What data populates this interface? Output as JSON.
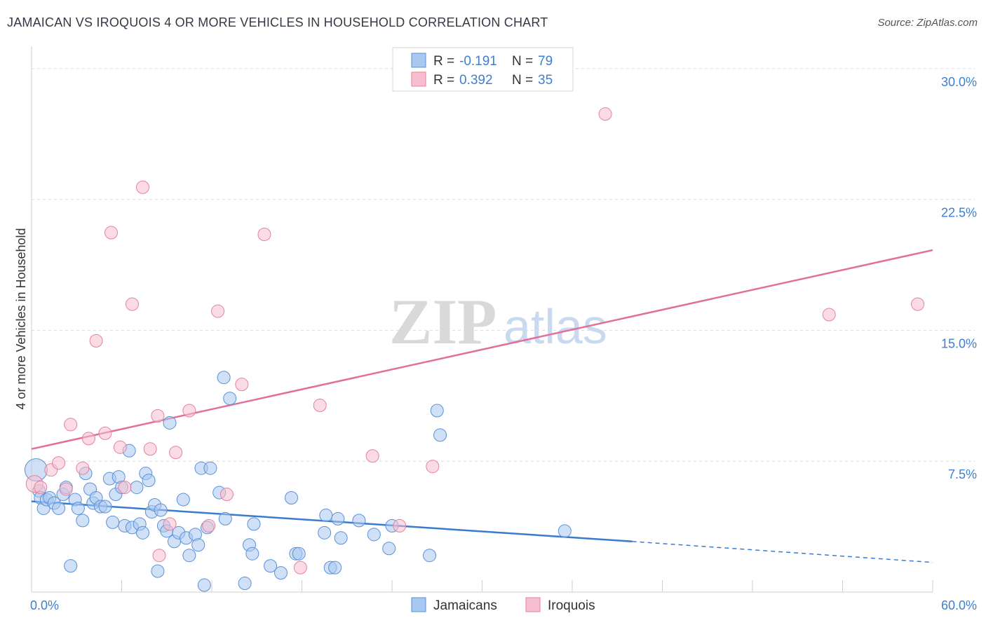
{
  "header": {
    "title": "JAMAICAN VS IROQUOIS 4 OR MORE VEHICLES IN HOUSEHOLD CORRELATION CHART",
    "source": "Source: ZipAtlas.com"
  },
  "watermark": {
    "zip": "ZIP",
    "atlas": "atlas"
  },
  "legend_box": {
    "rows": [
      {
        "r_label": "R =",
        "r_value": "-0.191",
        "n_label": "N =",
        "n_value": "79",
        "color": "#a9c8f0",
        "stroke": "#5a90d8"
      },
      {
        "r_label": "R =",
        "r_value": "0.392",
        "n_label": "N =",
        "n_value": "35",
        "color": "#f7bfd0",
        "stroke": "#e77fa0"
      }
    ]
  },
  "bottom_legend": [
    {
      "label": "Jamaicans",
      "color": "#a9c8f0",
      "stroke": "#5a90d8"
    },
    {
      "label": "Iroquois",
      "color": "#f7bfd0",
      "stroke": "#e77fa0"
    }
  ],
  "chart_data": {
    "type": "scatter",
    "title": "JAMAICAN VS IROQUOIS 4 OR MORE VEHICLES IN HOUSEHOLD CORRELATION CHART",
    "xlabel": "",
    "ylabel": "4 or more Vehicles in Household",
    "xlim": [
      0,
      60
    ],
    "ylim": [
      0,
      30.8
    ],
    "x_tick_labels": [
      "0.0%",
      "60.0%"
    ],
    "y_ticks": [
      7.5,
      15.0,
      22.5,
      30.0
    ],
    "y_tick_labels": [
      "7.5%",
      "15.0%",
      "22.5%",
      "30.0%"
    ],
    "series": [
      {
        "name": "Jamaicans",
        "color": "#a9c8f0",
        "stroke": "#5a90d8",
        "line_color": "#3a7ad0",
        "trend": {
          "x0": 0,
          "y0": 5.2,
          "x1": 40,
          "y1": 2.9,
          "dash_to_x": 60,
          "dash_to_y": 1.7
        },
        "points": [
          [
            0.3,
            7.0,
            16
          ],
          [
            0.5,
            5.8,
            9
          ],
          [
            0.6,
            5.4,
            9
          ],
          [
            0.8,
            4.8,
            9
          ],
          [
            1.0,
            5.3,
            9
          ],
          [
            1.2,
            5.4,
            9
          ],
          [
            1.5,
            5.1,
            9
          ],
          [
            1.8,
            4.8,
            9
          ],
          [
            2.1,
            5.6,
            9
          ],
          [
            2.3,
            6.0,
            9
          ],
          [
            2.6,
            1.5,
            9
          ],
          [
            2.9,
            5.3,
            9
          ],
          [
            3.1,
            4.8,
            9
          ],
          [
            3.4,
            4.1,
            9
          ],
          [
            3.6,
            6.8,
            9
          ],
          [
            3.9,
            5.9,
            9
          ],
          [
            4.1,
            5.1,
            9
          ],
          [
            4.3,
            5.4,
            9
          ],
          [
            4.6,
            4.9,
            9
          ],
          [
            4.9,
            4.9,
            9
          ],
          [
            5.2,
            6.5,
            9
          ],
          [
            5.4,
            4.0,
            9
          ],
          [
            5.6,
            5.6,
            9
          ],
          [
            5.8,
            6.6,
            9
          ],
          [
            6.0,
            6.0,
            9
          ],
          [
            6.2,
            3.8,
            9
          ],
          [
            6.5,
            8.1,
            9
          ],
          [
            6.7,
            3.7,
            9
          ],
          [
            7.0,
            6.0,
            9
          ],
          [
            7.2,
            3.9,
            9
          ],
          [
            7.4,
            3.4,
            9
          ],
          [
            7.6,
            6.8,
            9
          ],
          [
            7.8,
            6.4,
            9
          ],
          [
            8.0,
            4.6,
            9
          ],
          [
            8.2,
            5.0,
            9
          ],
          [
            8.4,
            1.2,
            9
          ],
          [
            8.6,
            4.7,
            9
          ],
          [
            8.8,
            3.8,
            9
          ],
          [
            9.0,
            3.5,
            9
          ],
          [
            9.2,
            9.7,
            9
          ],
          [
            9.5,
            2.9,
            9
          ],
          [
            9.8,
            3.4,
            9
          ],
          [
            10.1,
            5.3,
            9
          ],
          [
            10.3,
            3.1,
            9
          ],
          [
            10.5,
            2.1,
            9
          ],
          [
            10.9,
            3.3,
            9
          ],
          [
            11.1,
            2.7,
            9
          ],
          [
            11.3,
            7.1,
            9
          ],
          [
            11.5,
            0.4,
            9
          ],
          [
            11.7,
            3.7,
            9
          ],
          [
            11.9,
            7.1,
            9
          ],
          [
            12.5,
            5.7,
            9
          ],
          [
            12.8,
            12.3,
            9
          ],
          [
            12.9,
            4.2,
            9
          ],
          [
            13.2,
            11.1,
            9
          ],
          [
            14.2,
            0.5,
            9
          ],
          [
            14.5,
            2.7,
            9
          ],
          [
            14.7,
            2.2,
            9
          ],
          [
            14.8,
            3.9,
            9
          ],
          [
            15.9,
            1.5,
            9
          ],
          [
            16.6,
            1.1,
            9
          ],
          [
            17.3,
            5.4,
            9
          ],
          [
            17.6,
            2.2,
            9
          ],
          [
            17.8,
            2.2,
            9
          ],
          [
            19.5,
            3.4,
            9
          ],
          [
            19.6,
            4.4,
            9
          ],
          [
            19.9,
            1.4,
            9
          ],
          [
            20.2,
            1.4,
            9
          ],
          [
            20.4,
            4.2,
            9
          ],
          [
            20.6,
            3.1,
            9
          ],
          [
            21.8,
            4.1,
            9
          ],
          [
            22.8,
            3.3,
            9
          ],
          [
            23.8,
            2.5,
            9
          ],
          [
            24.0,
            3.8,
            9
          ],
          [
            26.5,
            2.1,
            9
          ],
          [
            27.0,
            10.4,
            9
          ],
          [
            27.2,
            9.0,
            9
          ],
          [
            35.5,
            3.5,
            9
          ]
        ]
      },
      {
        "name": "Iroquois",
        "color": "#f7bfd0",
        "stroke": "#e77fa0",
        "line_color": "#e0709a",
        "trend": {
          "x0": 0,
          "y0": 8.2,
          "x1": 60,
          "y1": 19.6
        },
        "points": [
          [
            0.2,
            6.2,
            12
          ],
          [
            0.6,
            6.0,
            9
          ],
          [
            1.3,
            7.0,
            9
          ],
          [
            1.8,
            7.4,
            9
          ],
          [
            2.3,
            5.9,
            9
          ],
          [
            2.6,
            9.6,
            9
          ],
          [
            3.4,
            7.1,
            9
          ],
          [
            3.8,
            8.8,
            9
          ],
          [
            4.3,
            14.4,
            9
          ],
          [
            4.9,
            9.1,
            9
          ],
          [
            5.3,
            20.6,
            9
          ],
          [
            5.9,
            8.3,
            9
          ],
          [
            6.2,
            6.0,
            9
          ],
          [
            6.7,
            16.5,
            9
          ],
          [
            7.4,
            23.2,
            9
          ],
          [
            7.9,
            8.2,
            9
          ],
          [
            8.4,
            10.1,
            9
          ],
          [
            8.5,
            2.1,
            9
          ],
          [
            9.2,
            3.9,
            9
          ],
          [
            9.6,
            8.0,
            9
          ],
          [
            10.5,
            10.4,
            9
          ],
          [
            11.8,
            3.8,
            9
          ],
          [
            12.4,
            16.1,
            9
          ],
          [
            13.0,
            5.6,
            9
          ],
          [
            14.0,
            11.9,
            9
          ],
          [
            15.5,
            20.5,
            9
          ],
          [
            17.9,
            1.4,
            9
          ],
          [
            19.2,
            10.7,
            9
          ],
          [
            22.7,
            7.8,
            9
          ],
          [
            24.5,
            3.8,
            9
          ],
          [
            26.7,
            7.2,
            9
          ],
          [
            38.2,
            27.4,
            9
          ],
          [
            53.1,
            15.9,
            9
          ],
          [
            59.0,
            16.5,
            9
          ]
        ]
      }
    ]
  }
}
